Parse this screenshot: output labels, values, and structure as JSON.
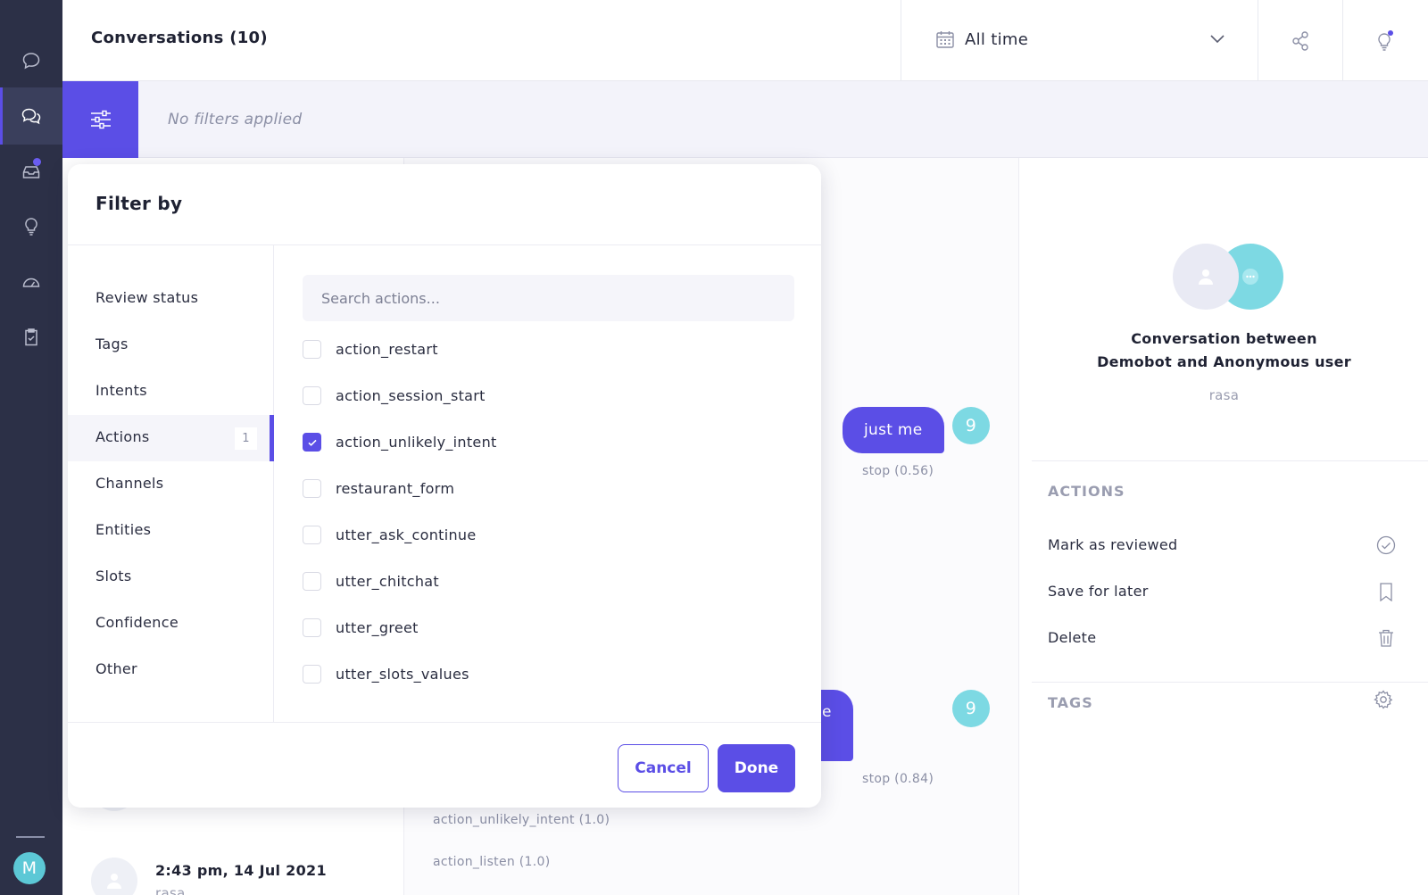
{
  "header": {
    "title": "Conversations (10)",
    "date_range": "All time",
    "share_icon": "share-icon",
    "tips_icon": "lightbulb-icon"
  },
  "nav": {
    "items": [
      "chat-icon",
      "conversations-icon",
      "inbox-icon",
      "insights-icon",
      "dashboard-icon",
      "tests-icon"
    ],
    "avatar_letter": "M"
  },
  "filter_bar": {
    "status": "No filters applied"
  },
  "list": {
    "items": [
      {
        "time": "",
        "source": "rasa"
      },
      {
        "time": "2:43 pm, 14 Jul 2021",
        "source": "rasa"
      }
    ]
  },
  "chat": {
    "messages": [
      {
        "text": "just me",
        "turn": "9",
        "caption": "stop (0.56)"
      },
      {
        "text": "ust be",
        "turn": "9",
        "caption": "stop (0.84)"
      }
    ],
    "actions": [
      "action_unlikely_intent (1.0)",
      "action_listen (1.0)"
    ]
  },
  "info": {
    "title_line1": "Conversation between",
    "title_line2": "Demobot and Anonymous user",
    "subtitle": "rasa",
    "actions_heading": "ACTIONS",
    "actions": [
      {
        "label": "Mark as reviewed",
        "icon": "check-circle-icon"
      },
      {
        "label": "Save for later",
        "icon": "bookmark-icon"
      },
      {
        "label": "Delete",
        "icon": "trash-icon"
      }
    ],
    "tags_heading": "TAGS"
  },
  "modal": {
    "title": "Filter by",
    "categories": [
      {
        "label": "Review status"
      },
      {
        "label": "Tags"
      },
      {
        "label": "Intents"
      },
      {
        "label": "Actions",
        "count": "1",
        "active": true
      },
      {
        "label": "Channels"
      },
      {
        "label": "Entities"
      },
      {
        "label": "Slots"
      },
      {
        "label": "Confidence"
      },
      {
        "label": "Other"
      }
    ],
    "search_placeholder": "Search actions...",
    "options": [
      {
        "label": "action_restart",
        "checked": false
      },
      {
        "label": "action_session_start",
        "checked": false
      },
      {
        "label": "action_unlikely_intent",
        "checked": true
      },
      {
        "label": "restaurant_form",
        "checked": false
      },
      {
        "label": "utter_ask_continue",
        "checked": false
      },
      {
        "label": "utter_chitchat",
        "checked": false
      },
      {
        "label": "utter_greet",
        "checked": false
      },
      {
        "label": "utter_slots_values",
        "checked": false
      }
    ],
    "cancel_label": "Cancel",
    "done_label": "Done"
  },
  "colors": {
    "accent": "#5b4ee6",
    "rail": "#2c3047",
    "teal": "#7dd9e3"
  }
}
